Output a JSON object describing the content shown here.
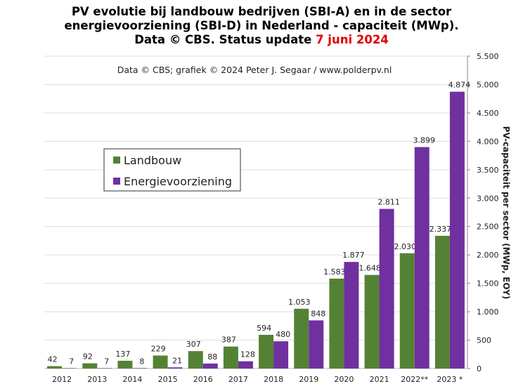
{
  "chart_data": {
    "type": "bar",
    "title": [
      "PV evolutie  bij landbouw bedrijven (SBI-A) en in de sector",
      "energievoorziening  (SBI-D) in Nederland - capaciteit  (MWp).",
      "Data © CBS. Status update "
    ],
    "title_highlight": "7 juni  2024",
    "subtitle": "Data © CBS;  grafiek © 2024  Peter J. Segaar / www.polderpv.nl",
    "y_axis_label": "PV-capaciteit per sector  (MWp, EOY)",
    "categories": [
      "2012",
      "2013",
      "2014",
      "2015",
      "2016",
      "2017",
      "2018",
      "2019",
      "2020",
      "2021",
      "2022**",
      "2023 *"
    ],
    "series": [
      {
        "name": "Landbouw",
        "color": "#548235",
        "values": [
          42,
          92,
          137,
          229,
          307,
          387,
          594,
          1053,
          1583,
          1648,
          2030,
          2337
        ],
        "value_labels": [
          "42",
          "92",
          "137",
          "229",
          "307",
          "387",
          "594",
          "1.053",
          "1.583",
          "1.648",
          "2.030",
          "2.337"
        ]
      },
      {
        "name": "Energievoorziening",
        "color": "#7030a0",
        "values": [
          7,
          7,
          8,
          21,
          88,
          128,
          480,
          848,
          1877,
          2811,
          3899,
          4874
        ],
        "value_labels": [
          "7",
          "7",
          "8",
          "21",
          "88",
          "128",
          "480",
          "848",
          "1.877",
          "2.811",
          "3.899",
          "4.874"
        ]
      }
    ],
    "ylim": [
      0,
      5500
    ],
    "yticks": [
      0,
      500,
      {
        "value": 1000,
        "label": "1.000"
      },
      {
        "value": 1500,
        "label": "1.500"
      },
      {
        "value": 2000,
        "label": "2.000"
      },
      {
        "value": 2500,
        "label": "2.500"
      },
      {
        "value": 3000,
        "label": "3.000"
      },
      {
        "value": 3500,
        "label": "3.500"
      },
      {
        "value": 4000,
        "label": "4.000"
      },
      {
        "value": 4500,
        "label": "4.500"
      },
      {
        "value": 5000,
        "label": "5.000"
      },
      {
        "value": 5500,
        "label": "5.500"
      }
    ],
    "grid": true,
    "legend": "upper left"
  }
}
